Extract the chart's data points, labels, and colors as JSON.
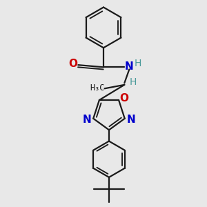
{
  "background_color": "#e8e8e8",
  "bond_color": "#1a1a1a",
  "o_color": "#cc0000",
  "n_color": "#0000cc",
  "h_color": "#4a9a9a",
  "line_width": 1.6,
  "fig_width": 3.0,
  "fig_height": 3.0,
  "dpi": 100,
  "xlim": [
    0.15,
    0.85
  ],
  "ylim": [
    0.03,
    0.97
  ]
}
